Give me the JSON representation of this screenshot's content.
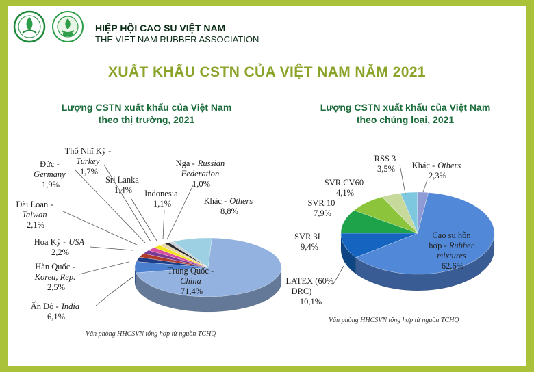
{
  "header": {
    "org_name": "HIỆP HỘI CAO SU VIỆT NAM",
    "org_name_en": "THE VIET NAM RUBBER ASSOCIATION",
    "main_title": "XUẤT KHẨU CSTN CỦA VIỆT NAM NĂM 2021"
  },
  "colors": {
    "frame": "#a9c23a",
    "title": "#8aa329",
    "subtitle": "#1b6b3a"
  },
  "chart_data": [
    {
      "type": "pie",
      "title_line1": "Lượng CSTN xuất khẩu của Việt Nam",
      "title_line2": "theo thị trường, 2021",
      "source": "Văn phòng HHCSVN tổng hợp từ nguồn TCHQ",
      "slices": [
        {
          "name_vi": "Trung Quốc -",
          "name_en": "China",
          "value": 71.4,
          "label": "71,4%",
          "color": "#93b2e0"
        },
        {
          "name_vi": "Ấn Độ -",
          "name_en": "India",
          "value": 6.1,
          "label": "6,1%",
          "color": "#4a7fd0"
        },
        {
          "name_vi": "Hàn Quốc -",
          "name_en": "Korea, Rep.",
          "value": 2.5,
          "label": "2,5%",
          "color": "#1f3d86"
        },
        {
          "name_vi": "Hoa Kỳ -",
          "name_en": "USA",
          "value": 2.2,
          "label": "2,2%",
          "color": "#b13c2c"
        },
        {
          "name_vi": "Đài Loan -",
          "name_en": "Taiwan",
          "value": 2.1,
          "label": "2,1%",
          "color": "#7a3a96"
        },
        {
          "name_vi": "Đức -",
          "name_en": "Germany",
          "value": 1.9,
          "label": "1,9%",
          "color": "#d94e9e"
        },
        {
          "name_vi": "Thổ Nhĩ Kỳ -",
          "name_en": "Turkey",
          "value": 1.7,
          "label": "1,7%",
          "color": "#f2e41a"
        },
        {
          "name_vi": "Sri Lanka",
          "name_en": "",
          "value": 1.4,
          "label": "1,4%",
          "color": "#e8d7a5"
        },
        {
          "name_vi": "Indonesia",
          "name_en": "",
          "value": 1.1,
          "label": "1,1%",
          "color": "#2a2a2a"
        },
        {
          "name_vi": "Nga -",
          "name_en": "Russian Federation",
          "value": 1.0,
          "label": "1,0%",
          "color": "#c8cfd6"
        },
        {
          "name_vi": "Khác -",
          "name_en": "Others",
          "value": 8.8,
          "label": "8,8%",
          "color": "#9ed0e3"
        }
      ]
    },
    {
      "type": "pie",
      "title_line1": "Lượng CSTN xuất khẩu của Việt Nam",
      "title_line2": "theo chủng loại, 2021",
      "source": "Văn phòng HHCSVN tổng hợp từ nguồn TCHQ",
      "slices": [
        {
          "name_vi": "Cao su hỗn hợp -",
          "name_en": "Rubber mixtures",
          "value": 62.6,
          "label": "62,6%",
          "color": "#5288d8"
        },
        {
          "name_vi": "LATEX (60% DRC)",
          "name_en": "",
          "value": 10.1,
          "label": "10,1%",
          "color": "#1565c0"
        },
        {
          "name_vi": "SVR 3L",
          "name_en": "",
          "value": 9.4,
          "label": "9,4%",
          "color": "#1ea34a"
        },
        {
          "name_vi": "SVR 10",
          "name_en": "",
          "value": 7.9,
          "label": "7,9%",
          "color": "#8cc43c"
        },
        {
          "name_vi": "SVR CV60",
          "name_en": "",
          "value": 4.1,
          "label": "4,1%",
          "color": "#c7d99b"
        },
        {
          "name_vi": "RSS 3",
          "name_en": "",
          "value": 3.5,
          "label": "3,5%",
          "color": "#7ec8df"
        },
        {
          "name_vi": "Khác -",
          "name_en": "Others",
          "value": 2.3,
          "label": "2,3%",
          "color": "#8f9bd4"
        }
      ]
    }
  ]
}
